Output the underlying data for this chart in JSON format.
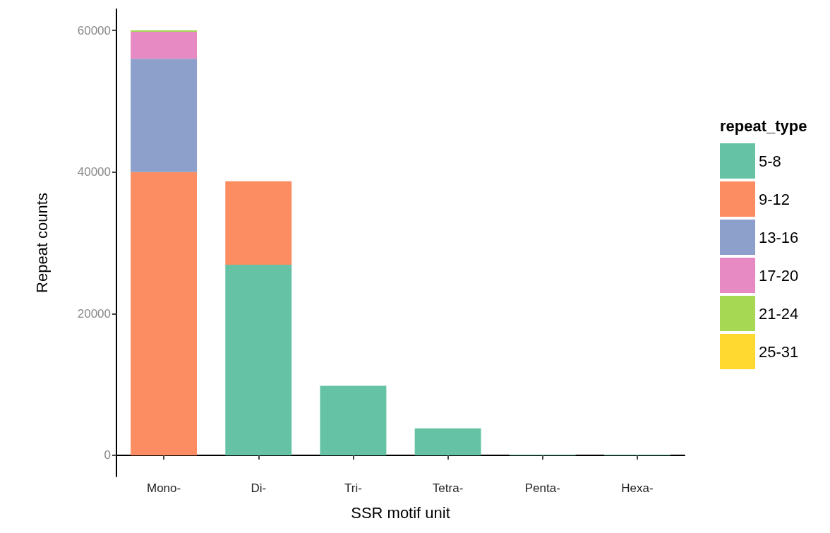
{
  "chart_data": {
    "type": "bar",
    "stacked": true,
    "xlabel": "SSR motif unit",
    "ylabel": "Repeat counts",
    "legend_title": "repeat_type",
    "legend": "right",
    "grid": false,
    "categories": [
      "Mono-",
      "Di-",
      "Tri-",
      "Tetra-",
      "Penta-",
      "Hexa-"
    ],
    "ylim": [
      -3000,
      63000
    ],
    "yticks": [
      0,
      20000,
      40000,
      60000
    ],
    "series": [
      {
        "name": "5-8",
        "color": "#66c2a5",
        "values": [
          0,
          26900,
          9800,
          3800,
          100,
          100
        ]
      },
      {
        "name": "9-12",
        "color": "#fc8d62",
        "values": [
          40000,
          11800,
          0,
          0,
          0,
          0
        ]
      },
      {
        "name": "13-16",
        "color": "#8da0cb",
        "values": [
          16000,
          0,
          0,
          0,
          0,
          0
        ]
      },
      {
        "name": "17-20",
        "color": "#e78ac3",
        "values": [
          3800,
          0,
          0,
          0,
          0,
          0
        ]
      },
      {
        "name": "21-24",
        "color": "#a6d854",
        "values": [
          200,
          0,
          0,
          0,
          0,
          0
        ]
      },
      {
        "name": "25-31",
        "color": "#ffd92f",
        "values": [
          0,
          0,
          0,
          0,
          0,
          0
        ]
      }
    ]
  }
}
